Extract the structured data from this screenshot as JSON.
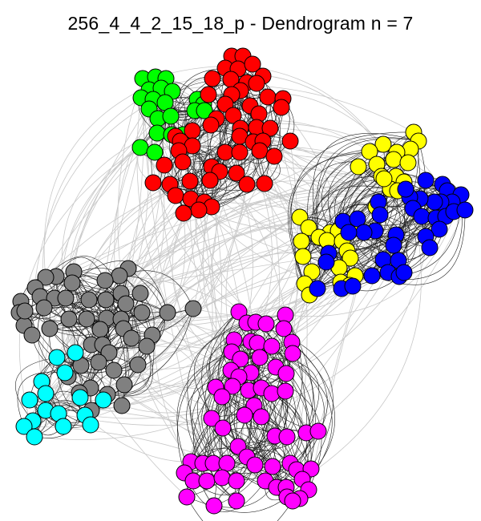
{
  "title": "256_4_4_2_15_18_p - Dendrogram n = 7",
  "colors": {
    "inter_edge": "#c8c8c8",
    "intra_edge": "#222222",
    "node_stroke": "#000000",
    "background": "#ffffff"
  },
  "communities": [
    {
      "name": "green",
      "color": "#00ff00"
    },
    {
      "name": "red",
      "color": "#ff0000"
    },
    {
      "name": "yellow",
      "color": "#ffff00"
    },
    {
      "name": "blue",
      "color": "#0000ff"
    },
    {
      "name": "gray",
      "color": "#808080"
    },
    {
      "name": "cyan",
      "color": "#00ffff"
    },
    {
      "name": "magenta",
      "color": "#ff00ff"
    }
  ]
}
